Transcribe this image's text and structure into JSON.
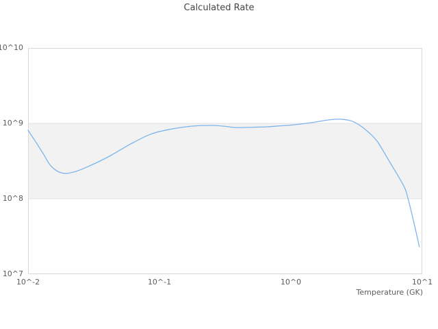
{
  "chart_data": {
    "type": "line",
    "title": "Calculated Rate",
    "xlabel": "Temperature (GK)",
    "ylabel": "",
    "x_scale": "log",
    "y_scale": "log",
    "xlim": [
      0.01,
      10
    ],
    "ylim": [
      10000000.0,
      10000000000.0
    ],
    "grid": "horizontal-only",
    "legend": "none",
    "x_ticks": {
      "values": [
        0.01,
        0.1,
        1,
        10
      ],
      "labels": [
        "10^-2",
        "10^-1",
        "10^0",
        "10^1"
      ]
    },
    "y_ticks": {
      "values": [
        10000000.0,
        100000000.0,
        1000000000.0,
        10000000000.0
      ],
      "labels": [
        "10^7",
        "10^8",
        "10^9",
        "10^10"
      ]
    },
    "band": {
      "y_from": 100000000.0,
      "y_to": 1000000000.0,
      "color": "#f2f2f2"
    },
    "series": [
      {
        "name": "Calculated Rate",
        "color": "#7cb5ec",
        "x": [
          0.01,
          0.0115,
          0.013,
          0.015,
          0.018,
          0.022,
          0.029,
          0.042,
          0.06,
          0.086,
          0.123,
          0.177,
          0.25,
          0.32,
          0.385,
          0.52,
          0.66,
          0.85,
          1.07,
          1.53,
          2.0,
          2.5,
          3.0,
          3.65,
          4.5,
          5.7,
          7.2,
          7.8,
          8.8,
          9.5
        ],
        "y": [
          810000000.0,
          560000000.0,
          400000000.0,
          270000000.0,
          220000000.0,
          225000000.0,
          270000000.0,
          370000000.0,
          530000000.0,
          720000000.0,
          840000000.0,
          920000000.0,
          940000000.0,
          910000000.0,
          880000000.0,
          890000000.0,
          900000000.0,
          930000000.0,
          960000000.0,
          1040000000.0,
          1120000000.0,
          1130000000.0,
          1050000000.0,
          840000000.0,
          590000000.0,
          300000000.0,
          150000000.0,
          100000000.0,
          42000000.0,
          23000000.0
        ]
      }
    ]
  },
  "colors": {
    "frame": "#d9d9d9",
    "grid": "#e3e3e3",
    "tick_text": "#5c5c5c",
    "title_text": "#454545",
    "background": "#ffffff"
  }
}
